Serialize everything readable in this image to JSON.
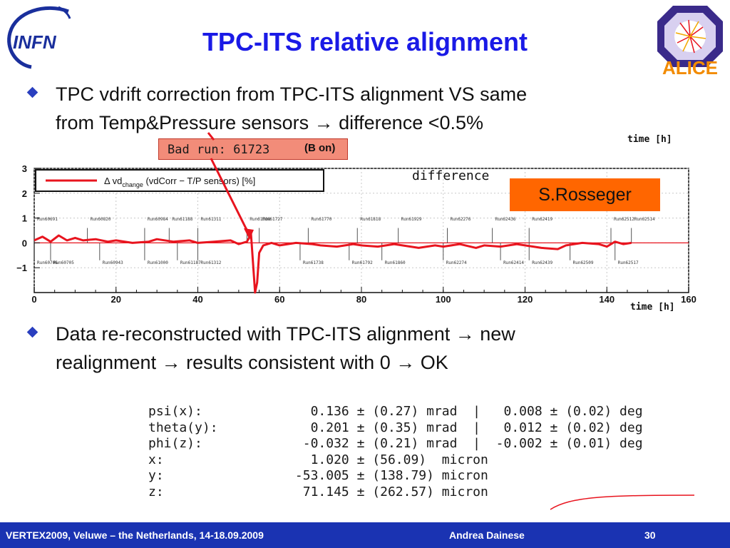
{
  "title": "TPC-ITS relative alignment",
  "logos": {
    "left": "INFN",
    "right": "ALICE"
  },
  "bullets": [
    {
      "line1": "TPC vdrift correction from TPC-ITS alignment VS same",
      "line2": "from Temp&Pressure sensors → difference <0.5%"
    },
    {
      "line1": "Data re-reconstructed with TPC-ITS alignment → new",
      "line2": "realignment → results consistent with 0 → OK"
    }
  ],
  "annotations": {
    "bad_run": "Bad run: 61723",
    "b_on": "(B on)",
    "author_tag": "S.Rosseger"
  },
  "chart_data": {
    "type": "line",
    "title": "difference",
    "xlabel": "time [h]",
    "top_label": "time [h]",
    "xlim": [
      0,
      160
    ],
    "ylim": [
      -2,
      3
    ],
    "x_ticks": [
      "0",
      "20",
      "40",
      "60",
      "80",
      "100",
      "120",
      "140",
      "160"
    ],
    "y_ticks": [
      "3",
      "2",
      "1",
      "0",
      "−1"
    ],
    "legend": {
      "prefix": "Δ vd",
      "sub": "change",
      "suffix": " (vdCorr − T/P sensors) [%]"
    },
    "grid": true,
    "series": [
      {
        "color": "#e8141e",
        "x": [
          0,
          2,
          4,
          6,
          8,
          10,
          12,
          15,
          18,
          20,
          24,
          28,
          30,
          34,
          38,
          40,
          44,
          48,
          50,
          52,
          53,
          54,
          54.5,
          55,
          56,
          58,
          60,
          64,
          68,
          70,
          74,
          78,
          80,
          84,
          88,
          90,
          94,
          98,
          100,
          104,
          108,
          110,
          114,
          118,
          120,
          124,
          128,
          130,
          134,
          138,
          140,
          142,
          144,
          146
        ],
        "y": [
          0.1,
          0.25,
          0.05,
          0.3,
          0.1,
          0.2,
          0.1,
          0.15,
          0.05,
          0.1,
          0.0,
          0.05,
          0.15,
          0.05,
          0.1,
          0.0,
          0.05,
          0.1,
          -0.05,
          0.05,
          0.35,
          -2.0,
          -1.6,
          -0.4,
          -0.1,
          0.0,
          -0.1,
          0.0,
          -0.05,
          -0.1,
          -0.15,
          -0.05,
          -0.1,
          -0.15,
          -0.05,
          -0.1,
          -0.2,
          -0.1,
          -0.15,
          -0.05,
          -0.2,
          -0.1,
          -0.15,
          -0.05,
          -0.1,
          -0.2,
          -0.25,
          -0.1,
          0.0,
          -0.05,
          -0.15,
          0.05,
          -0.05,
          0.0
        ]
      }
    ],
    "runs_above": [
      {
        "label": "Run60691",
        "x": 0
      },
      {
        "label": "Run60820",
        "x": 13
      },
      {
        "label": "Run60984",
        "x": 27
      },
      {
        "label": "Run61188",
        "x": 33
      },
      {
        "label": "Run61311",
        "x": 40
      },
      {
        "label": "Run61708",
        "x": 52
      },
      {
        "label": "Run61727",
        "x": 55
      },
      {
        "label": "Run61770",
        "x": 67
      },
      {
        "label": "Run61818",
        "x": 79
      },
      {
        "label": "Run61929",
        "x": 89
      },
      {
        "label": "Run62276",
        "x": 101
      },
      {
        "label": "Run62436",
        "x": 112
      },
      {
        "label": "Run62419",
        "x": 121
      },
      {
        "label": "Run62512",
        "x": 141
      },
      {
        "label": "Run62514",
        "x": 146
      }
    ],
    "runs_below": [
      {
        "label": "Run60706",
        "x": 0
      },
      {
        "label": "Run60705",
        "x": 4
      },
      {
        "label": "Run60943",
        "x": 16
      },
      {
        "label": "Run61000",
        "x": 27
      },
      {
        "label": "Run61187",
        "x": 35
      },
      {
        "label": "Run61312",
        "x": 40
      },
      {
        "label": "Run61738",
        "x": 65
      },
      {
        "label": "Run61792",
        "x": 77
      },
      {
        "label": "Run61860",
        "x": 85
      },
      {
        "label": "Run62274",
        "x": 100
      },
      {
        "label": "Run62414",
        "x": 114
      },
      {
        "label": "Run62439",
        "x": 121
      },
      {
        "label": "Run62509",
        "x": 131
      },
      {
        "label": "Run62517",
        "x": 142
      }
    ]
  },
  "fit_results": [
    {
      "name": "psi(x):",
      "v1": "0.136",
      "e1": "(0.27)",
      "u1": "mrad",
      "v2": "0.008",
      "e2": "(0.02)",
      "u2": "deg"
    },
    {
      "name": "theta(y):",
      "v1": "0.201",
      "e1": "(0.35)",
      "u1": "mrad",
      "v2": "0.012",
      "e2": "(0.02)",
      "u2": "deg"
    },
    {
      "name": "phi(z):",
      "v1": "-0.032",
      "e1": "(0.21)",
      "u1": "mrad",
      "v2": "-0.002",
      "e2": "(0.01)",
      "u2": "deg"
    },
    {
      "name": "x:",
      "v1": "1.020",
      "e1": "(56.09)",
      "u1": "micron",
      "v2": "",
      "e2": "",
      "u2": ""
    },
    {
      "name": "y:",
      "v1": "-53.005",
      "e1": "(138.79)",
      "u1": "micron",
      "v2": "",
      "e2": "",
      "u2": ""
    },
    {
      "name": "z:",
      "v1": "71.145",
      "e1": "(262.57)",
      "u1": "micron",
      "v2": "",
      "e2": "",
      "u2": ""
    }
  ],
  "footer": {
    "conference": "VERTEX2009, Veluwe – the Netherlands, 14-18.09.2009",
    "author": "Andrea Dainese",
    "page": "30"
  },
  "colors": {
    "title": "#1a1af0",
    "footer_bg": "#1a33b2",
    "curve": "#e8141e",
    "tag_bg": "#ff6600"
  }
}
